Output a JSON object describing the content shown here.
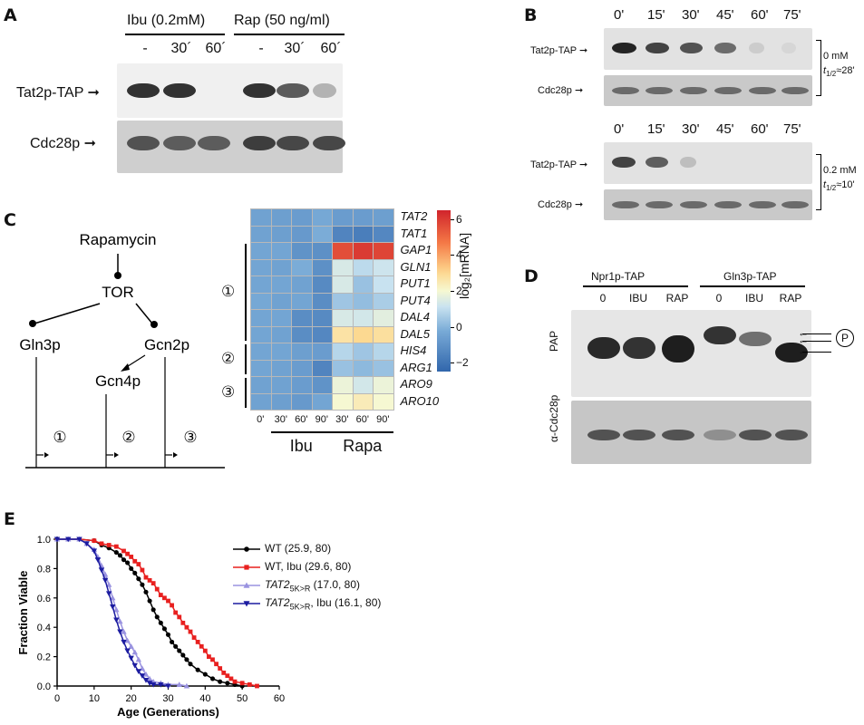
{
  "panels": {
    "A": "A",
    "B": "B",
    "C": "C",
    "D": "D",
    "E": "E"
  },
  "panelA": {
    "groups": [
      "Ibu (0.2mM)",
      "Rap (50 ng/ml)"
    ],
    "lanes": [
      "-",
      "30´",
      "60´",
      "-",
      "30´",
      "60´"
    ],
    "rows": [
      "Tat2p-TAP",
      "Cdc28p"
    ],
    "tat2_intensity": [
      0.9,
      0.9,
      0.0,
      0.9,
      0.75,
      0.35
    ],
    "cdc28_intensity": [
      0.7,
      0.65,
      0.65,
      0.8,
      0.75,
      0.75
    ]
  },
  "panelB": {
    "times": [
      "0'",
      "15'",
      "30'",
      "45'",
      "60'",
      "75'"
    ],
    "rows": [
      "Tat2p-TAP",
      "Cdc28p"
    ],
    "blocks": [
      {
        "conc": "0 mM",
        "halflife_sym": "t",
        "halflife_sub": "1/2",
        "halflife_val": "≈28'",
        "tat2_intensity": [
          0.95,
          0.85,
          0.8,
          0.7,
          0.2,
          0.12
        ]
      },
      {
        "conc": "0.2 mM",
        "halflife_sym": "t",
        "halflife_sub": "1/2",
        "halflife_val": "≈10'",
        "tat2_intensity": [
          0.85,
          0.75,
          0.3,
          0.0,
          0.0,
          0.0
        ]
      }
    ]
  },
  "panelC": {
    "pathway": {
      "rapamycin": "Rapamycin",
      "tor": "TOR",
      "gln3p": "Gln3p",
      "gcn2p": "Gcn2p",
      "gcn4p": "Gcn4p",
      "targets": [
        "①",
        "②",
        "③"
      ]
    },
    "heatmap": {
      "genes": [
        "TAT2",
        "TAT1",
        "GAP1",
        "GLN1",
        "PUT1",
        "PUT4",
        "DAL4",
        "DAL5",
        "HIS4",
        "ARG1",
        "ARO9",
        "ARO10"
      ],
      "columns": [
        "0'",
        "30'",
        "60'",
        "90'",
        "30'",
        "60'",
        "90'"
      ],
      "group_labels": [
        "Ibu",
        "Rapa"
      ],
      "cluster_labels": [
        "①",
        "②",
        "③"
      ],
      "values": [
        [
          -0.5,
          -0.6,
          -0.7,
          -0.3,
          -0.7,
          -0.7,
          -0.6
        ],
        [
          -0.5,
          -0.6,
          -0.8,
          -0.2,
          -1.5,
          -1.7,
          -1.4
        ],
        [
          -0.4,
          -0.4,
          -1.0,
          -1.1,
          5.6,
          6.0,
          5.8
        ],
        [
          -0.4,
          -0.5,
          -0.2,
          -1.1,
          1.4,
          0.9,
          1.2
        ],
        [
          -0.4,
          -0.4,
          -0.5,
          -1.3,
          1.4,
          0.3,
          1.1
        ],
        [
          -0.3,
          -0.5,
          -0.4,
          -1.2,
          0.4,
          0.2,
          0.6
        ],
        [
          -0.4,
          -0.4,
          -1.2,
          -1.3,
          1.4,
          1.3,
          1.6
        ],
        [
          -0.4,
          -0.5,
          -1.2,
          -1.4,
          2.7,
          3.0,
          2.8
        ],
        [
          -0.4,
          -0.4,
          -0.6,
          -0.7,
          0.8,
          0.4,
          0.8
        ],
        [
          -0.4,
          -0.5,
          -0.7,
          -1.5,
          0.3,
          0.1,
          0.3
        ],
        [
          -0.5,
          -0.5,
          -0.7,
          -1.0,
          1.8,
          1.3,
          1.8
        ],
        [
          -0.5,
          -0.6,
          -0.8,
          -0.4,
          2.0,
          2.4,
          2.0
        ]
      ],
      "colorbar_label": "log₂[mRNA]",
      "colorbar_ticks": [
        "6",
        "4",
        "2",
        "0",
        "−2"
      ],
      "colorbar_range": [
        -2.5,
        6.5
      ]
    }
  },
  "panelD": {
    "groups": [
      "Npr1p-TAP",
      "Gln3p-TAP"
    ],
    "lanes": [
      "0",
      "IBU",
      "RAP",
      "0",
      "IBU",
      "RAP"
    ],
    "rows": [
      "PAP",
      "α-Cdc28p"
    ],
    "phospho_symbol": "P"
  },
  "chart_data": {
    "type": "line",
    "xlabel": "Age (Generations)",
    "ylabel": "Fraction Viable",
    "xlim": [
      0,
      60
    ],
    "ylim": [
      0,
      1.0
    ],
    "xticks": [
      "0",
      "10",
      "20",
      "30",
      "40",
      "50",
      "60"
    ],
    "yticks": [
      "0.0",
      "0.2",
      "0.4",
      "0.6",
      "0.8",
      "1.0"
    ],
    "legend_position": "top-right",
    "series": [
      {
        "name": "WT (25.9, 80)",
        "label_main": "WT (25.9, 80)",
        "label_sub": "",
        "label_rest": "",
        "color": "#000000",
        "marker": "circle",
        "x": [
          0,
          6,
          10,
          12,
          14,
          16,
          17,
          18,
          19,
          20,
          21,
          22,
          23,
          24,
          25,
          26,
          27,
          28,
          29,
          30,
          31,
          32,
          33,
          34,
          35,
          36,
          38,
          40,
          42,
          44,
          46,
          48,
          50
        ],
        "y": [
          1.0,
          1.0,
          0.99,
          0.96,
          0.94,
          0.91,
          0.89,
          0.86,
          0.84,
          0.8,
          0.77,
          0.73,
          0.69,
          0.64,
          0.58,
          0.52,
          0.47,
          0.43,
          0.39,
          0.35,
          0.3,
          0.27,
          0.24,
          0.21,
          0.18,
          0.15,
          0.11,
          0.08,
          0.05,
          0.03,
          0.02,
          0.01,
          0.0
        ]
      },
      {
        "name": "WT, Ibu (29.6, 80)",
        "label_main": "WT, Ibu (29.6, 80)",
        "label_sub": "",
        "label_rest": "",
        "color": "#e8201f",
        "marker": "square",
        "x": [
          0,
          6,
          10,
          12,
          14,
          16,
          18,
          19,
          20,
          21,
          22,
          23,
          24,
          25,
          26,
          27,
          28,
          29,
          30,
          31,
          32,
          33,
          34,
          35,
          36,
          37,
          38,
          39,
          40,
          41,
          42,
          43,
          44,
          45,
          46,
          47,
          48,
          50,
          52,
          54
        ],
        "y": [
          1.0,
          1.0,
          0.99,
          0.97,
          0.96,
          0.95,
          0.92,
          0.9,
          0.88,
          0.85,
          0.83,
          0.79,
          0.74,
          0.72,
          0.7,
          0.66,
          0.62,
          0.6,
          0.58,
          0.55,
          0.5,
          0.47,
          0.43,
          0.4,
          0.37,
          0.33,
          0.3,
          0.27,
          0.24,
          0.2,
          0.18,
          0.15,
          0.12,
          0.09,
          0.07,
          0.05,
          0.03,
          0.02,
          0.01,
          0.0
        ]
      },
      {
        "name": "TAT2 5K>R (17.0, 80)",
        "label_main": "TAT2",
        "label_sub": "5K>R",
        "label_rest": " (17.0, 80)",
        "color": "#9a93e0",
        "marker": "triangle-up",
        "x": [
          0,
          3,
          6,
          8,
          10,
          11,
          12,
          13,
          14,
          15,
          16,
          17,
          18,
          19,
          20,
          21,
          22,
          23,
          24,
          25,
          26,
          28,
          30,
          33,
          35
        ],
        "y": [
          1.0,
          1.0,
          1.0,
          0.97,
          0.93,
          0.88,
          0.82,
          0.76,
          0.69,
          0.6,
          0.52,
          0.44,
          0.37,
          0.31,
          0.27,
          0.23,
          0.18,
          0.12,
          0.08,
          0.05,
          0.03,
          0.02,
          0.01,
          0.01,
          0.0
        ]
      },
      {
        "name": "TAT2 5K>R, Ibu (16.1, 80)",
        "label_main": "TAT2",
        "label_sub": "5K>R",
        "label_rest": ", Ibu (16.1, 80)",
        "color": "#1c1ca0",
        "marker": "triangle-down",
        "x": [
          0,
          3,
          6,
          8,
          10,
          11,
          12,
          13,
          14,
          15,
          16,
          17,
          18,
          19,
          20,
          21,
          22,
          23,
          24,
          25,
          26,
          28,
          30
        ],
        "y": [
          1.0,
          1.0,
          1.0,
          0.97,
          0.92,
          0.86,
          0.79,
          0.72,
          0.63,
          0.54,
          0.45,
          0.37,
          0.3,
          0.24,
          0.19,
          0.14,
          0.1,
          0.07,
          0.04,
          0.02,
          0.01,
          0.01,
          0.0
        ]
      }
    ]
  }
}
